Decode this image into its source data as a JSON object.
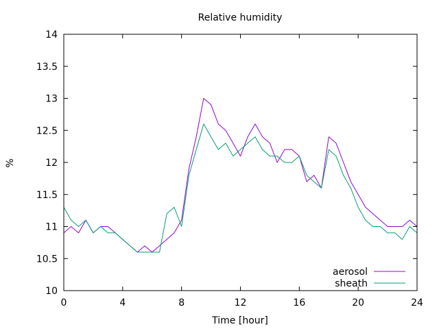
{
  "chart_data": {
    "type": "line",
    "title": "Relative humidity",
    "xlabel": "Time [hour]",
    "ylabel": "%",
    "xlim": [
      0,
      24
    ],
    "ylim": [
      10,
      14
    ],
    "xticks": [
      "0",
      "4",
      "8",
      "12",
      "16",
      "20",
      "24"
    ],
    "xtick_values": [
      0,
      4,
      8,
      12,
      16,
      20,
      24
    ],
    "yticks": [
      "10",
      "10.5",
      "11",
      "11.5",
      "12",
      "12.5",
      "13",
      "13.5",
      "14"
    ],
    "ytick_values": [
      10,
      10.5,
      11,
      11.5,
      12,
      12.5,
      13,
      13.5,
      14
    ],
    "grid": false,
    "legend_position": "bottom-right",
    "series": [
      {
        "name": "aerosol",
        "color": "#9400d3",
        "x": [
          0,
          0.5,
          1,
          1.5,
          2,
          2.5,
          3,
          3.5,
          4,
          4.5,
          5,
          5.5,
          6,
          6.5,
          7,
          7.5,
          8,
          8.5,
          9,
          9.5,
          10,
          10.5,
          11,
          11.5,
          12,
          12.5,
          13,
          13.5,
          14,
          14.5,
          15,
          15.5,
          16,
          16.5,
          17,
          17.5,
          18,
          18.5,
          19,
          19.5,
          20,
          20.5,
          21,
          21.5,
          22,
          22.5,
          23,
          23.5,
          24
        ],
        "y": [
          10.9,
          11.0,
          10.9,
          11.1,
          10.9,
          11.0,
          11.0,
          10.9,
          10.8,
          10.7,
          10.6,
          10.7,
          10.6,
          10.7,
          10.8,
          10.9,
          11.1,
          11.9,
          12.4,
          13.0,
          12.9,
          12.6,
          12.5,
          12.3,
          12.1,
          12.4,
          12.6,
          12.4,
          12.3,
          12.0,
          12.2,
          12.2,
          12.1,
          11.7,
          11.8,
          11.6,
          12.4,
          12.3,
          12.0,
          11.7,
          11.5,
          11.3,
          11.2,
          11.1,
          11.0,
          11.0,
          11.0,
          11.1,
          11.0
        ]
      },
      {
        "name": "sheath",
        "color": "#009e73",
        "x": [
          0,
          0.5,
          1,
          1.5,
          2,
          2.5,
          3,
          3.5,
          4,
          4.5,
          5,
          5.5,
          6,
          6.5,
          7,
          7.5,
          8,
          8.5,
          9,
          9.5,
          10,
          10.5,
          11,
          11.5,
          12,
          12.5,
          13,
          13.5,
          14,
          14.5,
          15,
          15.5,
          16,
          16.5,
          17,
          17.5,
          18,
          18.5,
          19,
          19.5,
          20,
          20.5,
          21,
          21.5,
          22,
          22.5,
          23,
          23.5,
          24
        ],
        "y": [
          11.3,
          11.1,
          11.0,
          11.1,
          10.9,
          11.0,
          10.9,
          10.9,
          10.8,
          10.7,
          10.6,
          10.6,
          10.6,
          10.6,
          11.2,
          11.3,
          11.0,
          11.8,
          12.2,
          12.6,
          12.4,
          12.2,
          12.3,
          12.1,
          12.2,
          12.3,
          12.4,
          12.2,
          12.1,
          12.1,
          12.0,
          12.0,
          12.1,
          11.8,
          11.7,
          11.6,
          12.2,
          12.1,
          11.8,
          11.6,
          11.3,
          11.1,
          11.0,
          11.0,
          10.9,
          10.9,
          10.8,
          11.0,
          10.9
        ]
      }
    ]
  }
}
